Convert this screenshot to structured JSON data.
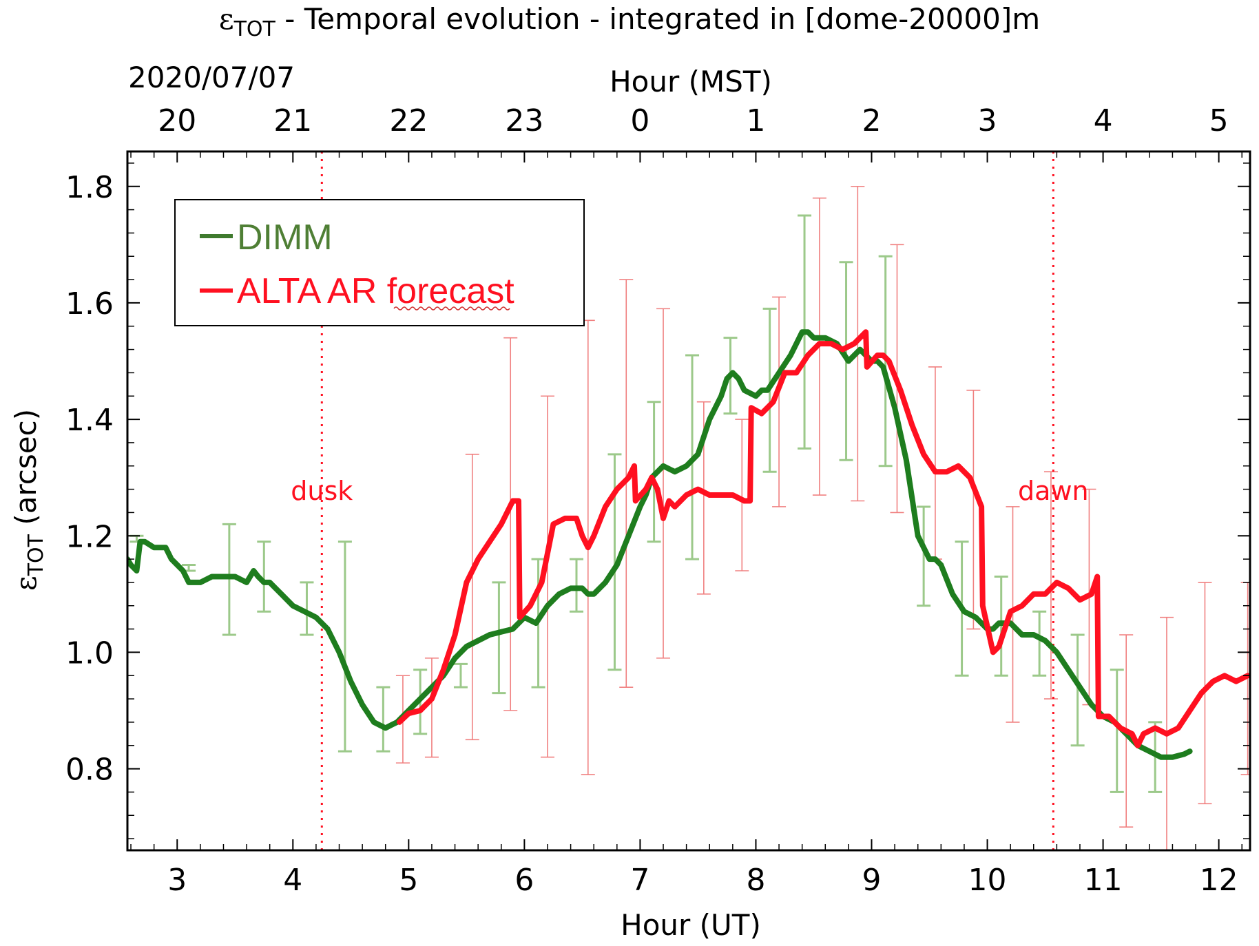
{
  "chart_data": {
    "type": "line",
    "title_main": "ε",
    "title_sub": "TOT",
    "title_rest": " - Temporal evolution - integrated in [dome-20000]m",
    "date_label": "2020/07/07",
    "xlabel": "Hour (UT)",
    "x2label": "Hour (MST)",
    "ylabel_main": "ε",
    "ylabel_sub": "TOT",
    "ylabel_rest": " (arcsec)",
    "xlim": [
      2.57,
      12.27
    ],
    "ylim": [
      0.66,
      1.86
    ],
    "x_ticks": [
      3,
      4,
      5,
      6,
      7,
      8,
      9,
      10,
      11,
      12
    ],
    "x_tick_labels": [
      "3",
      "4",
      "5",
      "6",
      "7",
      "8",
      "9",
      "10",
      "11",
      "12"
    ],
    "x2_ticks": [
      3,
      4,
      5,
      6,
      7,
      8,
      9,
      10,
      11,
      12
    ],
    "x2_tick_labels": [
      "20",
      "21",
      "22",
      "23",
      "0",
      "1",
      "2",
      "3",
      "4",
      "5"
    ],
    "y_ticks": [
      0.8,
      1.0,
      1.2,
      1.4,
      1.6,
      1.8
    ],
    "y_tick_labels": [
      "0.8",
      "1.0",
      "1.2",
      "1.4",
      "1.6",
      "1.8"
    ],
    "legend": [
      "DIMM",
      "ALTA AR forecast"
    ],
    "legend_location": "top-left",
    "colors": {
      "dimm": "#1e7d1e",
      "alta": "#ff1020",
      "dimm_err": "#9cc98a",
      "alta_err": "#f08080",
      "annot": "#ff1020"
    },
    "vlines": [
      {
        "x": 4.25,
        "label": "dusk"
      },
      {
        "x": 10.57,
        "label": "dawn"
      }
    ],
    "series": [
      {
        "name": "DIMM",
        "x": [
          2.57,
          2.6,
          2.65,
          2.68,
          2.72,
          2.8,
          2.9,
          2.95,
          3.0,
          3.05,
          3.1,
          3.2,
          3.3,
          3.4,
          3.5,
          3.6,
          3.66,
          3.7,
          3.75,
          3.8,
          3.9,
          4.0,
          4.1,
          4.2,
          4.3,
          4.4,
          4.5,
          4.6,
          4.7,
          4.8,
          4.85,
          4.9,
          5.0,
          5.1,
          5.2,
          5.3,
          5.4,
          5.5,
          5.6,
          5.7,
          5.8,
          5.9,
          6.0,
          6.1,
          6.2,
          6.3,
          6.4,
          6.5,
          6.55,
          6.6,
          6.7,
          6.8,
          6.9,
          7.0,
          7.05,
          7.1,
          7.2,
          7.3,
          7.4,
          7.5,
          7.6,
          7.7,
          7.75,
          7.8,
          7.85,
          7.9,
          8.0,
          8.05,
          8.1,
          8.2,
          8.3,
          8.35,
          8.4,
          8.45,
          8.5,
          8.6,
          8.7,
          8.8,
          8.9,
          9.0,
          9.05,
          9.1,
          9.2,
          9.3,
          9.4,
          9.5,
          9.55,
          9.6,
          9.7,
          9.8,
          9.9,
          10.0,
          10.05,
          10.1,
          10.2,
          10.3,
          10.4,
          10.5,
          10.6,
          10.7,
          10.8,
          10.9,
          11.0,
          11.1,
          11.2,
          11.3,
          11.4,
          11.5,
          11.6,
          11.7,
          11.75
        ],
        "y": [
          1.16,
          1.15,
          1.14,
          1.19,
          1.19,
          1.18,
          1.18,
          1.16,
          1.15,
          1.14,
          1.12,
          1.12,
          1.13,
          1.13,
          1.13,
          1.12,
          1.14,
          1.13,
          1.12,
          1.12,
          1.1,
          1.08,
          1.07,
          1.06,
          1.04,
          1.0,
          0.95,
          0.91,
          0.88,
          0.87,
          0.875,
          0.88,
          0.9,
          0.92,
          0.94,
          0.96,
          0.99,
          1.01,
          1.02,
          1.03,
          1.035,
          1.04,
          1.06,
          1.05,
          1.08,
          1.1,
          1.11,
          1.11,
          1.1,
          1.1,
          1.12,
          1.15,
          1.2,
          1.25,
          1.27,
          1.3,
          1.32,
          1.31,
          1.32,
          1.34,
          1.4,
          1.44,
          1.47,
          1.48,
          1.47,
          1.45,
          1.44,
          1.45,
          1.45,
          1.48,
          1.51,
          1.53,
          1.55,
          1.55,
          1.54,
          1.54,
          1.53,
          1.5,
          1.52,
          1.5,
          1.5,
          1.49,
          1.42,
          1.33,
          1.2,
          1.16,
          1.16,
          1.15,
          1.1,
          1.07,
          1.06,
          1.04,
          1.04,
          1.05,
          1.05,
          1.03,
          1.03,
          1.02,
          1.0,
          0.97,
          0.94,
          0.91,
          0.89,
          0.88,
          0.86,
          0.84,
          0.83,
          0.82,
          0.82,
          0.825,
          0.83
        ]
      },
      {
        "name": "ALTA AR forecast",
        "x": [
          4.92,
          5.0,
          5.1,
          5.2,
          5.3,
          5.4,
          5.5,
          5.6,
          5.7,
          5.8,
          5.9,
          5.95,
          5.96,
          6.05,
          6.15,
          6.25,
          6.35,
          6.45,
          6.5,
          6.55,
          6.6,
          6.7,
          6.8,
          6.9,
          6.95,
          6.96,
          7.05,
          7.1,
          7.15,
          7.2,
          7.25,
          7.3,
          7.35,
          7.4,
          7.5,
          7.6,
          7.7,
          7.8,
          7.9,
          7.95,
          7.96,
          8.05,
          8.15,
          8.25,
          8.35,
          8.45,
          8.55,
          8.65,
          8.75,
          8.85,
          8.95,
          8.96,
          9.05,
          9.1,
          9.15,
          9.25,
          9.35,
          9.45,
          9.55,
          9.65,
          9.75,
          9.85,
          9.95,
          9.96,
          10.05,
          10.1,
          10.2,
          10.3,
          10.4,
          10.5,
          10.6,
          10.7,
          10.8,
          10.9,
          10.95,
          10.96,
          11.05,
          11.15,
          11.25,
          11.3,
          11.35,
          11.45,
          11.55,
          11.65,
          11.75,
          11.85,
          11.95,
          12.05,
          12.15,
          12.25
        ],
        "y": [
          0.88,
          0.895,
          0.9,
          0.92,
          0.97,
          1.03,
          1.12,
          1.16,
          1.19,
          1.22,
          1.26,
          1.26,
          1.06,
          1.08,
          1.12,
          1.22,
          1.23,
          1.23,
          1.2,
          1.18,
          1.2,
          1.25,
          1.28,
          1.3,
          1.32,
          1.26,
          1.28,
          1.3,
          1.28,
          1.23,
          1.26,
          1.25,
          1.26,
          1.27,
          1.28,
          1.27,
          1.27,
          1.27,
          1.26,
          1.26,
          1.42,
          1.41,
          1.43,
          1.48,
          1.48,
          1.51,
          1.53,
          1.53,
          1.52,
          1.53,
          1.55,
          1.49,
          1.51,
          1.51,
          1.5,
          1.45,
          1.39,
          1.34,
          1.31,
          1.31,
          1.32,
          1.3,
          1.25,
          1.08,
          1.0,
          1.01,
          1.07,
          1.08,
          1.1,
          1.1,
          1.12,
          1.11,
          1.09,
          1.1,
          1.13,
          0.89,
          0.89,
          0.87,
          0.86,
          0.84,
          0.86,
          0.87,
          0.86,
          0.87,
          0.9,
          0.93,
          0.95,
          0.96,
          0.95,
          0.96
        ]
      }
    ],
    "error_bars": [
      {
        "series": "DIMM",
        "points": [
          [
            2.65,
            1.2,
            1.19
          ],
          [
            3.1,
            1.15,
            1.14
          ],
          [
            3.45,
            1.22,
            1.03
          ],
          [
            3.75,
            1.19,
            1.07
          ],
          [
            4.12,
            1.12,
            1.03
          ],
          [
            4.45,
            1.19,
            0.83
          ],
          [
            4.78,
            0.94,
            0.83
          ],
          [
            5.1,
            0.97,
            0.86
          ],
          [
            5.45,
            0.98,
            0.94
          ],
          [
            5.78,
            1.12,
            0.93
          ],
          [
            6.12,
            1.16,
            0.94
          ],
          [
            6.45,
            1.16,
            1.07
          ],
          [
            6.78,
            1.34,
            0.97
          ],
          [
            7.12,
            1.43,
            1.19
          ],
          [
            7.45,
            1.51,
            1.16
          ],
          [
            7.78,
            1.54,
            1.41
          ],
          [
            8.12,
            1.59,
            1.31
          ],
          [
            8.42,
            1.75,
            1.35
          ],
          [
            8.78,
            1.67,
            1.33
          ],
          [
            9.12,
            1.68,
            1.32
          ],
          [
            9.45,
            1.25,
            1.08
          ],
          [
            9.78,
            1.19,
            0.96
          ],
          [
            10.12,
            1.13,
            0.96
          ],
          [
            10.45,
            1.07,
            0.96
          ],
          [
            10.78,
            1.03,
            0.84
          ],
          [
            11.12,
            0.97,
            0.76
          ],
          [
            11.45,
            0.88,
            0.76
          ]
        ]
      },
      {
        "series": "ALTA AR forecast",
        "points": [
          [
            4.95,
            0.96,
            0.81
          ],
          [
            5.2,
            0.99,
            0.82
          ],
          [
            5.55,
            1.34,
            0.85
          ],
          [
            5.88,
            1.54,
            0.9
          ],
          [
            6.2,
            1.44,
            0.82
          ],
          [
            6.55,
            1.57,
            0.79
          ],
          [
            6.88,
            1.64,
            0.94
          ],
          [
            7.2,
            1.59,
            0.99
          ],
          [
            7.55,
            1.43,
            1.1
          ],
          [
            7.88,
            1.4,
            1.14
          ],
          [
            8.2,
            1.61,
            1.25
          ],
          [
            8.55,
            1.78,
            1.27
          ],
          [
            8.88,
            1.8,
            1.26
          ],
          [
            9.22,
            1.7,
            1.24
          ],
          [
            9.55,
            1.49,
            1.16
          ],
          [
            9.88,
            1.45,
            1.04
          ],
          [
            10.22,
            1.25,
            0.88
          ],
          [
            10.55,
            1.31,
            0.92
          ],
          [
            10.88,
            1.28,
            0.91
          ],
          [
            11.2,
            1.03,
            0.7
          ],
          [
            11.55,
            1.06,
            0.66
          ],
          [
            11.88,
            1.12,
            0.74
          ],
          [
            12.25,
            1.12,
            0.79
          ]
        ]
      }
    ]
  }
}
